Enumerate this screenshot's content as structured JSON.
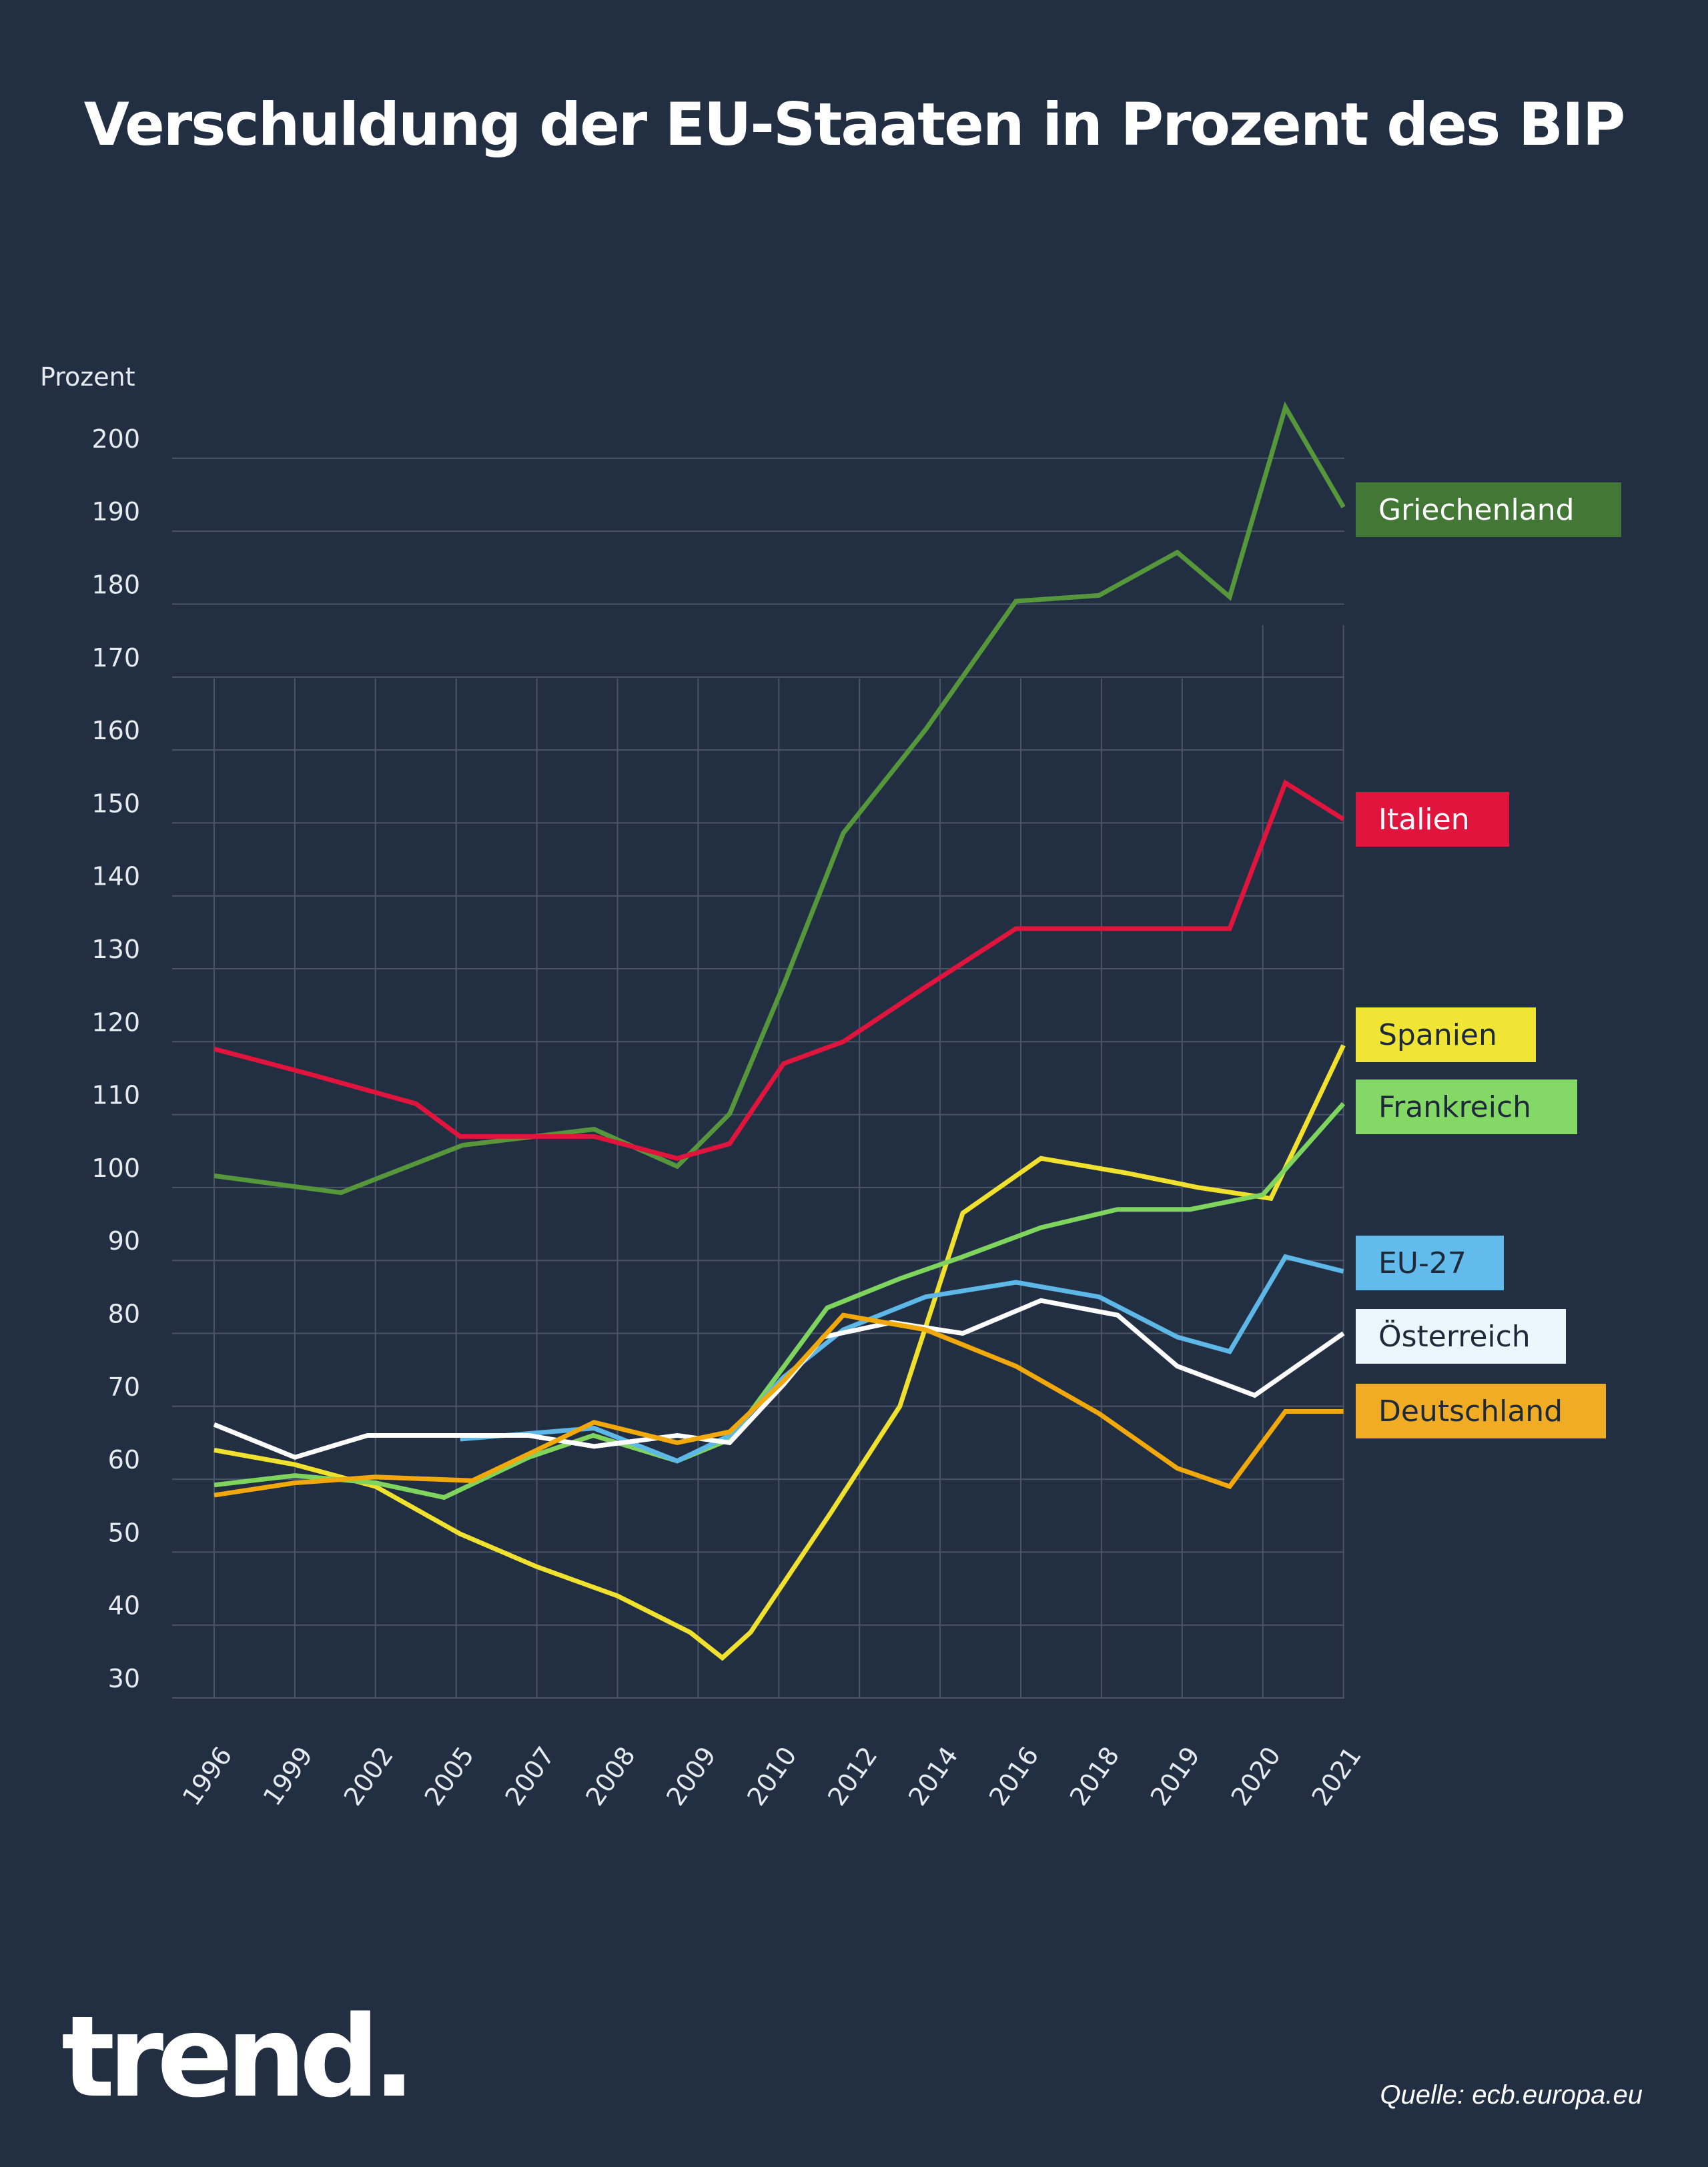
{
  "title": "Verschuldung der EU-Staaten in Prozent des BIP",
  "logo": "trend.",
  "source": "Quelle: ecb.europa.eu",
  "chart_data": {
    "type": "line",
    "title": "Verschuldung der EU-Staaten in Prozent des BIP",
    "xlabel": "",
    "ylabel": "Prozent",
    "ylim": [
      30,
      200
    ],
    "yticks": [
      30,
      40,
      50,
      60,
      70,
      80,
      90,
      100,
      110,
      120,
      130,
      140,
      150,
      160,
      170,
      180,
      190,
      200
    ],
    "categories": [
      "1996",
      "1999",
      "2002",
      "2005",
      "2007",
      "2008",
      "2009",
      "2010",
      "2012",
      "2014",
      "2016",
      "2018",
      "2019",
      "2020",
      "2021"
    ],
    "grid": true,
    "legend_placement": "right, labels at line ends",
    "series": [
      {
        "name": "Griechenland",
        "color": "#55973a",
        "label_bg": "#437736",
        "label_fg": "#ffffff",
        "points": [
          [
            0,
            101.6
          ],
          [
            1.57,
            99.3
          ],
          [
            3.08,
            105.8
          ],
          [
            4.71,
            108
          ],
          [
            5.74,
            102.9
          ],
          [
            6.39,
            110.1
          ],
          [
            7.06,
            127.8
          ],
          [
            7.8,
            148.6
          ],
          [
            8.82,
            162.8
          ],
          [
            9.94,
            180.4
          ],
          [
            10.97,
            181.2
          ],
          [
            11.94,
            187.1
          ],
          [
            12.59,
            181
          ],
          [
            13.28,
            207
          ],
          [
            14,
            193.3
          ]
        ]
      },
      {
        "name": "Italien",
        "color": "#e0143c",
        "label_bg": "#e0143c",
        "label_fg": "#ffffff",
        "points": [
          [
            0,
            119
          ],
          [
            1.2,
            115.5
          ],
          [
            2.5,
            111.5
          ],
          [
            3.05,
            107
          ],
          [
            4.71,
            107
          ],
          [
            5.74,
            104
          ],
          [
            6.39,
            106
          ],
          [
            7.06,
            117
          ],
          [
            7.8,
            120
          ],
          [
            8.82,
            127.5
          ],
          [
            9.94,
            135.5
          ],
          [
            10.97,
            135.5
          ],
          [
            11.94,
            135.5
          ],
          [
            12.59,
            135.5
          ],
          [
            13.28,
            155.5
          ],
          [
            14,
            150.5
          ]
        ]
      },
      {
        "name": "Spanien",
        "color": "#f0e12e",
        "label_bg": "#f0e435",
        "label_fg": "#1e2a3a",
        "points": [
          [
            0,
            64
          ],
          [
            1,
            62
          ],
          [
            2,
            59
          ],
          [
            3.05,
            52.5
          ],
          [
            4,
            48
          ],
          [
            5,
            44
          ],
          [
            5.9,
            39
          ],
          [
            6.3,
            35.5
          ],
          [
            6.65,
            39
          ],
          [
            7.65,
            55.5
          ],
          [
            8.5,
            70
          ],
          [
            9.28,
            96.5
          ],
          [
            10.25,
            104
          ],
          [
            11.3,
            102
          ],
          [
            12.2,
            100
          ],
          [
            13.1,
            98.5
          ],
          [
            14,
            119.5
          ]
        ]
      },
      {
        "name": "Frankreich",
        "color": "#7ed45c",
        "label_bg": "#84d866",
        "label_fg": "#1e2a3a",
        "points": [
          [
            0,
            59.2
          ],
          [
            1,
            60.5
          ],
          [
            2,
            59.5
          ],
          [
            2.85,
            57.5
          ],
          [
            3.9,
            63
          ],
          [
            4.7,
            66
          ],
          [
            5.74,
            62.5
          ],
          [
            6.4,
            65.5
          ],
          [
            7.6,
            83.5
          ],
          [
            8.5,
            87.5
          ],
          [
            9.28,
            90.5
          ],
          [
            10.25,
            94.5
          ],
          [
            11.2,
            97
          ],
          [
            12.1,
            97
          ],
          [
            13,
            99
          ],
          [
            14,
            111.5
          ]
        ]
      },
      {
        "name": "EU-27",
        "color": "#5db8e8",
        "label_bg": "#62bbea",
        "label_fg": "#1e2a3a",
        "points": [
          [
            3.05,
            65.5
          ],
          [
            4.71,
            67
          ],
          [
            5.74,
            62.5
          ],
          [
            6.39,
            66
          ],
          [
            7.06,
            74
          ],
          [
            7.8,
            80.5
          ],
          [
            8.82,
            85
          ],
          [
            9.94,
            87
          ],
          [
            10.97,
            85
          ],
          [
            11.94,
            79.5
          ],
          [
            12.59,
            77.5
          ],
          [
            13.28,
            90.5
          ],
          [
            14,
            88.5
          ]
        ]
      },
      {
        "name": "Österreich",
        "color": "#ffffff",
        "label_bg": "#eaf5fc",
        "label_fg": "#1e2a3a",
        "points": [
          [
            0,
            67.5
          ],
          [
            1,
            63
          ],
          [
            1.9,
            66
          ],
          [
            3.05,
            66
          ],
          [
            3.9,
            66
          ],
          [
            4.71,
            64.5
          ],
          [
            5.74,
            66
          ],
          [
            6.39,
            65
          ],
          [
            7.06,
            73
          ],
          [
            7.55,
            79.5
          ],
          [
            8.4,
            81.5
          ],
          [
            9.28,
            80
          ],
          [
            10.25,
            84.5
          ],
          [
            11.2,
            82.5
          ],
          [
            11.94,
            75.5
          ],
          [
            12.9,
            71.5
          ],
          [
            14,
            80
          ]
        ]
      },
      {
        "name": "Deutschland",
        "color": "#f0a80a",
        "label_bg": "#f0ac25",
        "label_fg": "#1e2a3a",
        "points": [
          [
            0,
            57.8
          ],
          [
            1,
            59.5
          ],
          [
            2,
            60.3
          ],
          [
            3.2,
            59.8
          ],
          [
            4,
            64
          ],
          [
            4.71,
            67.8
          ],
          [
            5.74,
            65
          ],
          [
            6.39,
            66.5
          ],
          [
            7.06,
            73.5
          ],
          [
            7.8,
            82.5
          ],
          [
            8.82,
            80.5
          ],
          [
            9.94,
            75.5
          ],
          [
            10.97,
            69
          ],
          [
            11.94,
            61.5
          ],
          [
            12.59,
            59
          ],
          [
            13.28,
            69.3
          ],
          [
            14,
            69.3
          ]
        ]
      }
    ],
    "end_labels": [
      "Griechenland",
      "Italien",
      "Spanien",
      "Frankreich",
      "EU-27",
      "Österreich",
      "Deutschland"
    ]
  }
}
